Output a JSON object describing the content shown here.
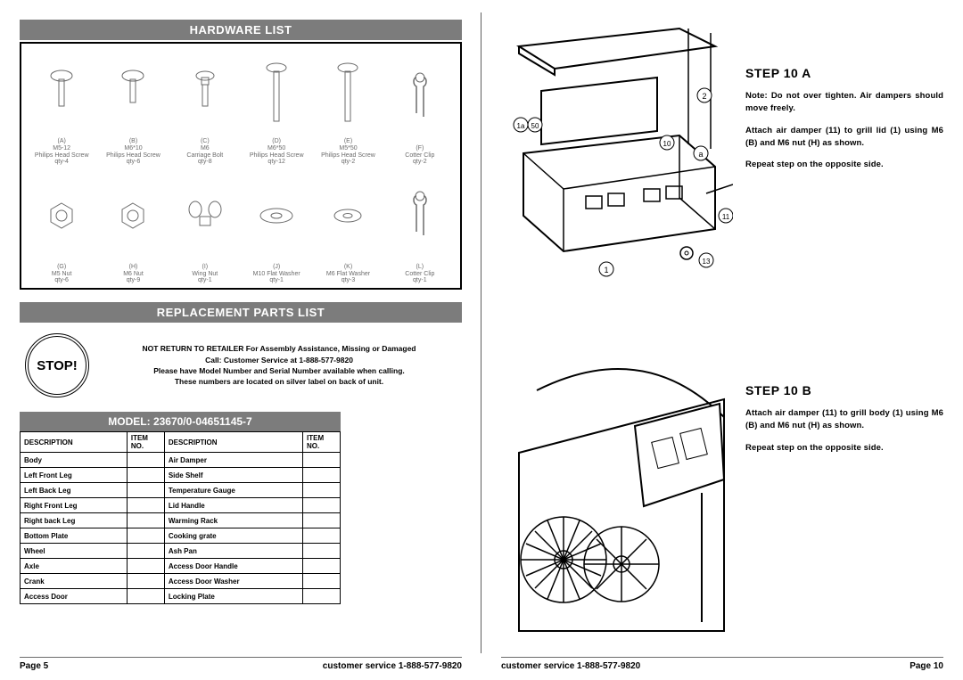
{
  "left_page": {
    "hardware_header": "HARDWARE LIST",
    "hardware_items": [
      {
        "code": "(A)",
        "name": "M5-12",
        "desc": "Philips Head Screw",
        "qty": "qty-4"
      },
      {
        "code": "(B)",
        "name": "M6*10",
        "desc": "Philips Head Screw",
        "qty": "qty-6"
      },
      {
        "code": "(C)",
        "name": "M6",
        "desc": "Carriage Bolt",
        "qty": "qty-8"
      },
      {
        "code": "(D)",
        "name": "M6*50",
        "desc": "Philips Head Screw",
        "qty": "qty-12"
      },
      {
        "code": "(E)",
        "name": "M5*50",
        "desc": "Philips Head Screw",
        "qty": "qty-2"
      },
      {
        "code": "(F)",
        "name": "",
        "desc": "Cotter Clip",
        "qty": "qty-2"
      },
      {
        "code": "(G)",
        "name": "M5 Nut",
        "desc": "",
        "qty": "qty-6"
      },
      {
        "code": "(H)",
        "name": "M6 Nut",
        "desc": "",
        "qty": "qty-9"
      },
      {
        "code": "(I)",
        "name": "Wing Nut",
        "desc": "",
        "qty": "qty-1"
      },
      {
        "code": "(J)",
        "name": "M10 Flat Washer",
        "desc": "",
        "qty": "qty-1"
      },
      {
        "code": "(K)",
        "name": "M6 Flat Washer",
        "desc": "",
        "qty": "qty-3"
      },
      {
        "code": "(L)",
        "name": "",
        "desc": "Cotter Clip",
        "qty": "qty-1"
      }
    ],
    "replacement_header": "REPLACEMENT PARTS LIST",
    "stop_label": "STOP!",
    "stop_text_lines": [
      "NOT RETURN TO RETAILER For Assembly Assistance, Missing or Damaged",
      "Call: Customer Service at 1-888-577-9820",
      "Please have Model Number and Serial Number available when calling.",
      "These numbers are located on silver label on back of unit."
    ],
    "model_header": "MODEL: 23670/0-04651145-7",
    "table_headers": [
      "DESCRIPTION",
      "ITEM NO.",
      "DESCRIPTION",
      "ITEM NO."
    ],
    "table_rows": [
      [
        "Body",
        "",
        "Air Damper",
        ""
      ],
      [
        "Left Front Leg",
        "",
        "Side Shelf",
        ""
      ],
      [
        "Left Back Leg",
        "",
        "Temperature Gauge",
        ""
      ],
      [
        "Right Front Leg",
        "",
        "Lid Handle",
        ""
      ],
      [
        "Right back Leg",
        "",
        "Warming Rack",
        ""
      ],
      [
        "Bottom Plate",
        "",
        "Cooking grate",
        ""
      ],
      [
        "Wheel",
        "",
        "Ash Pan",
        ""
      ],
      [
        "Axle",
        "",
        "Access Door Handle",
        ""
      ],
      [
        "Crank",
        "",
        "Access Door Washer",
        ""
      ],
      [
        "Access Door",
        "",
        "Locking Plate",
        ""
      ]
    ],
    "footer_page": "Page 5",
    "footer_svc": "customer service 1-888-577-9820"
  },
  "right_page": {
    "step_a": {
      "title": "STEP 10 A",
      "note": "Note: Do not over tighten. Air dampers should move freely.",
      "body1": "Attach air damper (11) to grill lid (1) using M6 (B) and M6 nut (H) as shown.",
      "body2": "Repeat step on the opposite side."
    },
    "step_b": {
      "title": "STEP 10 B",
      "body1": "Attach air damper (11) to grill body (1) using M6 (B) and M6 nut (H) as shown.",
      "body2": "Repeat step on the opposite side."
    },
    "footer_svc": "customer service 1-888-577-9820",
    "footer_page": "Page 10"
  },
  "colors": {
    "header_bg": "#7c7c7c",
    "header_fg": "#ffffff",
    "border": "#000000",
    "muted_text": "#6b6b6b"
  }
}
